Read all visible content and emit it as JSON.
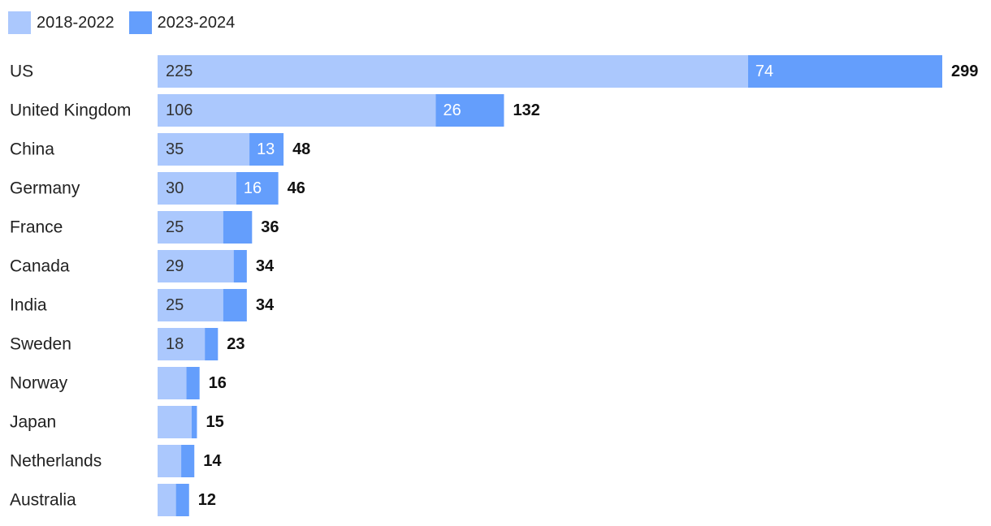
{
  "colors": {
    "early": "#abc8fd",
    "late": "#649efc",
    "text": "#222222",
    "onbar_late": "#ffffff"
  },
  "legend": [
    {
      "label": "2018-2022",
      "color": "#abc8fd"
    },
    {
      "label": "2023-2024",
      "color": "#649efc"
    }
  ],
  "chart_data": {
    "type": "bar",
    "orientation": "horizontal",
    "stacked": true,
    "categories": [
      "US",
      "United Kingdom",
      "China",
      "Germany",
      "France",
      "Canada",
      "India",
      "Sweden",
      "Norway",
      "Japan",
      "Netherlands",
      "Australia"
    ],
    "series": [
      {
        "name": "2018-2022",
        "values": [
          225,
          106,
          35,
          30,
          25,
          29,
          25,
          18,
          11,
          13,
          9,
          7
        ],
        "labels": [
          "225",
          "106",
          "35",
          "30",
          "25",
          "29",
          "25",
          "18",
          "",
          "",
          "",
          ""
        ]
      },
      {
        "name": "2023-2024",
        "values": [
          74,
          26,
          13,
          16,
          11,
          5,
          9,
          5,
          5,
          2,
          5,
          5
        ],
        "labels": [
          "74",
          "26",
          "13",
          "16",
          "",
          "",
          "",
          "",
          "",
          "",
          "",
          ""
        ]
      }
    ],
    "totals": [
      "299",
      "132",
      "48",
      "46",
      "36",
      "34",
      "34",
      "23",
      "16",
      "15",
      "14",
      "12"
    ],
    "xlim": [
      0,
      299
    ],
    "axes_visible": false,
    "grid": false,
    "legend_position": "top-left"
  }
}
